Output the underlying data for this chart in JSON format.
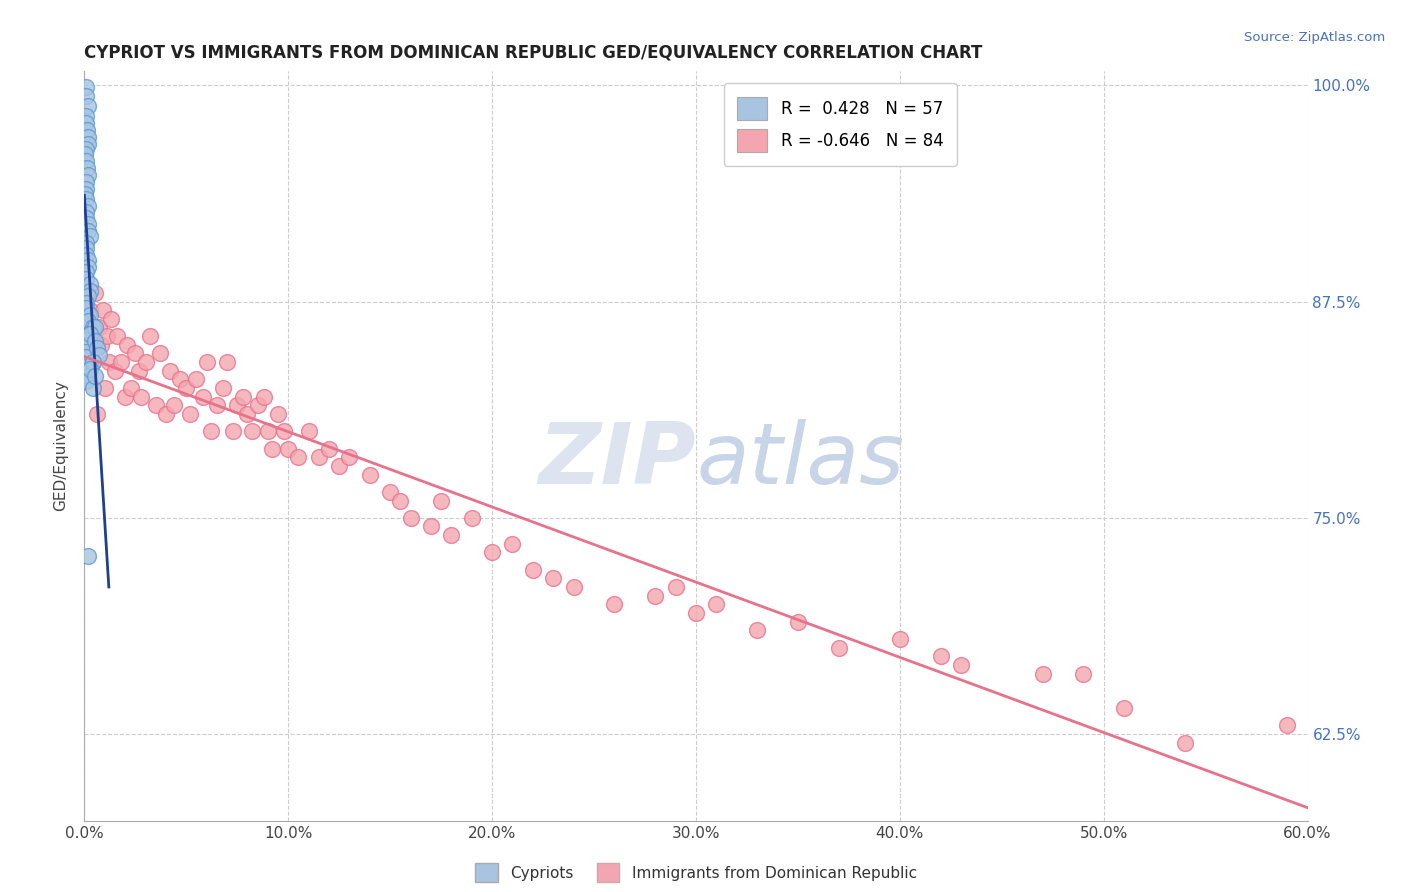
{
  "title": "CYPRIOT VS IMMIGRANTS FROM DOMINICAN REPUBLIC GED/EQUIVALENCY CORRELATION CHART",
  "source": "Source: ZipAtlas.com",
  "ylabel": "GED/Equivalency",
  "xmin": 0.0,
  "xmax": 0.6,
  "ymin": 0.575,
  "ymax": 1.008,
  "yticks": [
    0.625,
    0.75,
    0.875,
    1.0
  ],
  "ytick_labels": [
    "62.5%",
    "75.0%",
    "87.5%",
    "100.0%"
  ],
  "xticks": [
    0.0,
    0.1,
    0.2,
    0.3,
    0.4,
    0.5,
    0.6
  ],
  "xtick_labels": [
    "0.0%",
    "10.0%",
    "20.0%",
    "30.0%",
    "40.0%",
    "50.0%",
    "60.0%"
  ],
  "grid_color": "#cccccc",
  "background_color": "#ffffff",
  "cypriot_color": "#a8c4e0",
  "cypriot_edge_color": "#5b9bd5",
  "dominican_color": "#f4a6b0",
  "dominican_edge_color": "#e8728a",
  "cypriot_line_color": "#1f3f8f",
  "dominican_line_color": "#e8728a",
  "R_cypriot": 0.428,
  "N_cypriot": 57,
  "R_dominican": -0.646,
  "N_dominican": 84,
  "legend_label_cypriot": "Cypriots",
  "legend_label_dominican": "Immigrants from Dominican Republic",
  "cypriot_x": [
    0.001,
    0.001,
    0.002,
    0.001,
    0.001,
    0.0015,
    0.002,
    0.002,
    0.001,
    0.0005,
    0.001,
    0.0015,
    0.002,
    0.001,
    0.001,
    0.0005,
    0.001,
    0.002,
    0.001,
    0.001,
    0.002,
    0.002,
    0.003,
    0.001,
    0.001,
    0.001,
    0.002,
    0.002,
    0.001,
    0.001,
    0.003,
    0.003,
    0.002,
    0.001,
    0.001,
    0.003,
    0.002,
    0.004,
    0.003,
    0.001,
    0.002,
    0.001,
    0.001,
    0.003,
    0.003,
    0.002,
    0.001,
    0.004,
    0.005,
    0.003,
    0.005,
    0.006,
    0.007,
    0.004,
    0.003,
    0.005,
    0.002
  ],
  "cypriot_y": [
    0.999,
    0.994,
    0.988,
    0.982,
    0.978,
    0.974,
    0.97,
    0.966,
    0.963,
    0.96,
    0.956,
    0.952,
    0.948,
    0.944,
    0.94,
    0.937,
    0.934,
    0.93,
    0.927,
    0.923,
    0.92,
    0.916,
    0.913,
    0.909,
    0.906,
    0.902,
    0.899,
    0.895,
    0.892,
    0.888,
    0.885,
    0.881,
    0.878,
    0.874,
    0.871,
    0.867,
    0.864,
    0.86,
    0.857,
    0.853,
    0.85,
    0.846,
    0.843,
    0.839,
    0.836,
    0.832,
    0.829,
    0.825,
    0.86,
    0.856,
    0.852,
    0.848,
    0.844,
    0.84,
    0.836,
    0.832,
    0.728
  ],
  "dominican_x": [
    0.003,
    0.004,
    0.005,
    0.006,
    0.007,
    0.008,
    0.009,
    0.01,
    0.011,
    0.012,
    0.013,
    0.015,
    0.016,
    0.018,
    0.02,
    0.021,
    0.023,
    0.025,
    0.027,
    0.028,
    0.03,
    0.032,
    0.035,
    0.037,
    0.04,
    0.042,
    0.044,
    0.047,
    0.05,
    0.052,
    0.055,
    0.058,
    0.06,
    0.062,
    0.065,
    0.068,
    0.07,
    0.073,
    0.075,
    0.078,
    0.08,
    0.082,
    0.085,
    0.088,
    0.09,
    0.092,
    0.095,
    0.098,
    0.1,
    0.105,
    0.11,
    0.115,
    0.12,
    0.125,
    0.13,
    0.14,
    0.15,
    0.155,
    0.16,
    0.17,
    0.175,
    0.18,
    0.19,
    0.2,
    0.21,
    0.22,
    0.23,
    0.24,
    0.26,
    0.28,
    0.29,
    0.3,
    0.31,
    0.33,
    0.35,
    0.37,
    0.4,
    0.42,
    0.43,
    0.47,
    0.49,
    0.51,
    0.54,
    0.59
  ],
  "dominican_y": [
    0.87,
    0.84,
    0.88,
    0.81,
    0.86,
    0.85,
    0.87,
    0.825,
    0.855,
    0.84,
    0.865,
    0.835,
    0.855,
    0.84,
    0.82,
    0.85,
    0.825,
    0.845,
    0.835,
    0.82,
    0.84,
    0.855,
    0.815,
    0.845,
    0.81,
    0.835,
    0.815,
    0.83,
    0.825,
    0.81,
    0.83,
    0.82,
    0.84,
    0.8,
    0.815,
    0.825,
    0.84,
    0.8,
    0.815,
    0.82,
    0.81,
    0.8,
    0.815,
    0.82,
    0.8,
    0.79,
    0.81,
    0.8,
    0.79,
    0.785,
    0.8,
    0.785,
    0.79,
    0.78,
    0.785,
    0.775,
    0.765,
    0.76,
    0.75,
    0.745,
    0.76,
    0.74,
    0.75,
    0.73,
    0.735,
    0.72,
    0.715,
    0.71,
    0.7,
    0.705,
    0.71,
    0.695,
    0.7,
    0.685,
    0.69,
    0.675,
    0.68,
    0.67,
    0.665,
    0.66,
    0.66,
    0.64,
    0.62,
    0.63
  ]
}
